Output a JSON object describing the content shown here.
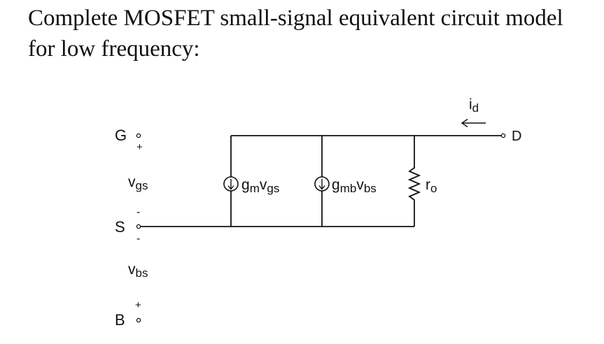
{
  "heading": {
    "line1": "Complete MOSFET small-signal equivalent circuit model",
    "line2": "for low frequency:"
  },
  "terminals": {
    "gate": "G",
    "source": "S",
    "bulk": "B",
    "drain": "D"
  },
  "polarity": {
    "plus": "+",
    "minus": "-"
  },
  "voltages": {
    "vgs": {
      "main": "v",
      "sub": "gs"
    },
    "vbs": {
      "main": "v",
      "sub": "bs"
    }
  },
  "drain_current": {
    "main": "i",
    "sub": "d"
  },
  "elements": {
    "gm_source": {
      "g": "g",
      "g_sub": "m",
      "v": "v",
      "v_sub": "gs"
    },
    "gmb_source": {
      "g": "g",
      "g_sub": "mb",
      "v": "v",
      "v_sub": "bs"
    },
    "output_resistor": {
      "main": "r",
      "sub": "o"
    }
  }
}
